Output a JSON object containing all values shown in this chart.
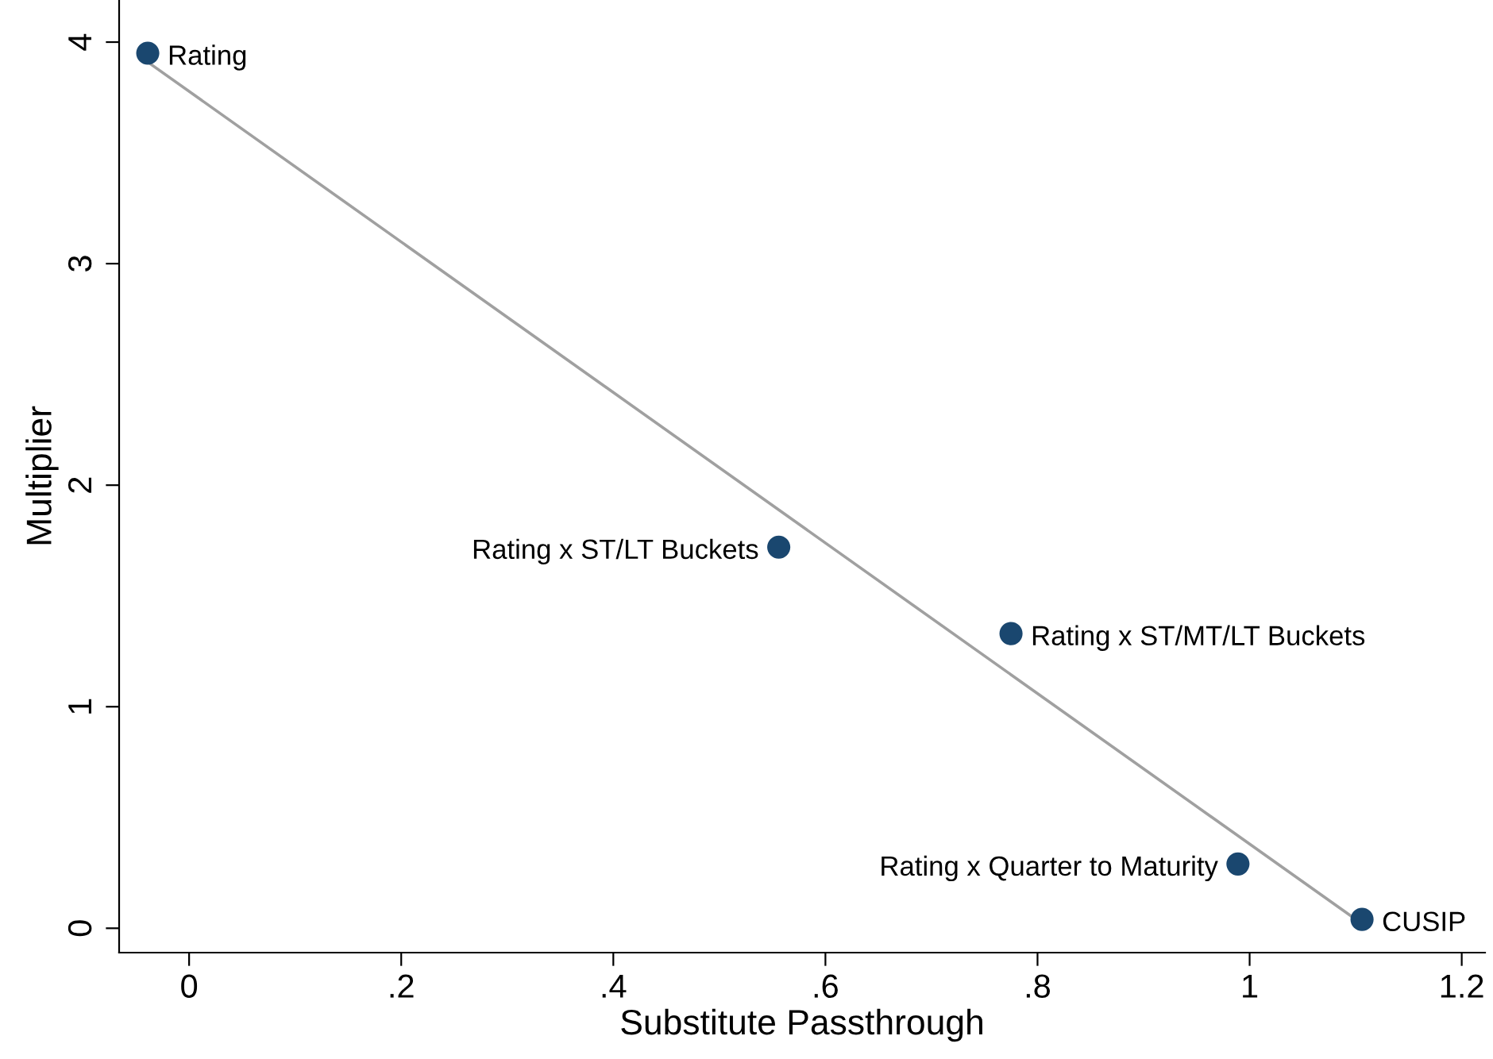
{
  "chart_data": {
    "type": "scatter",
    "xlabel": "Substitute Passthrough",
    "ylabel": "Multiplier",
    "x": [
      -0.039,
      0.556,
      0.775,
      0.989,
      1.106
    ],
    "series": [
      {
        "color": "#1a476f",
        "values": [
          3.95,
          1.72,
          1.33,
          0.29,
          0.04
        ],
        "marker": "circle"
      },
      {
        "type": "line",
        "color": "#a0a0a0",
        "x": [
          -0.039,
          1.106
        ],
        "values": [
          3.91,
          0.02
        ]
      }
    ],
    "annotations": [
      {
        "text": "Rating",
        "x": -0.039,
        "y": 3.95
      },
      {
        "text": "Rating x ST/LT Buckets",
        "x": 0.556,
        "y": 1.72
      },
      {
        "text": "Rating x ST/MT/LT Buckets",
        "x": 0.775,
        "y": 1.33
      },
      {
        "text": "Rating x Quarter to Maturity",
        "x": 0.989,
        "y": 0.29
      },
      {
        "text": "CUSIP",
        "x": 1.106,
        "y": 0.04
      }
    ],
    "xlim": [
      -0.066,
      1.222
    ],
    "ylim": [
      -0.11,
      4.19
    ],
    "xticks": [
      0,
      {
        "value": 0.2,
        "label": ".2"
      },
      {
        "value": 0.4,
        "label": ".4"
      },
      {
        "value": 0.6,
        "label": ".6"
      },
      {
        "value": 0.8,
        "label": ".8"
      },
      1,
      1.2
    ],
    "yticks": [
      0,
      1,
      2,
      3,
      4
    ],
    "grid": false,
    "legend": false
  }
}
